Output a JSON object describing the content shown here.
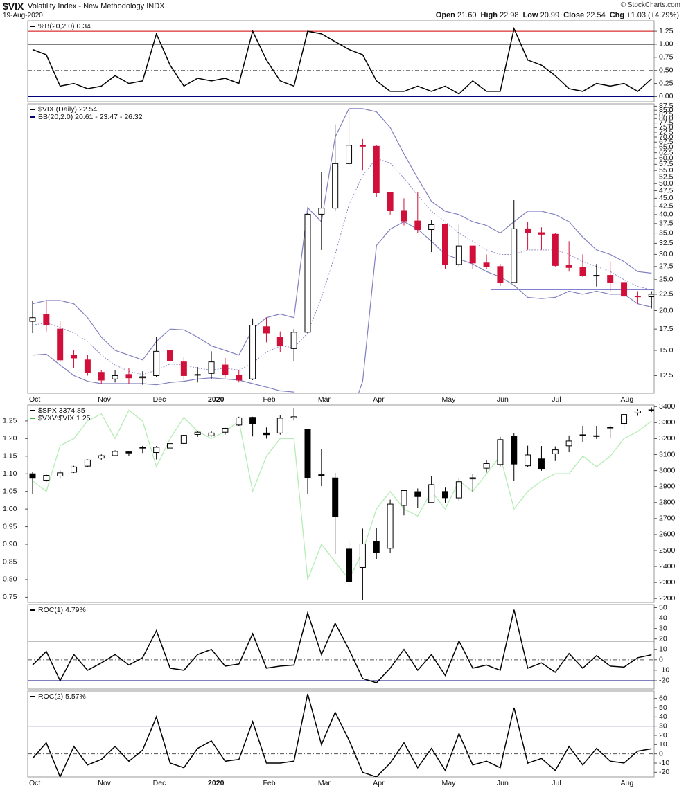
{
  "header": {
    "symbol": "$VIX",
    "name": "Volatility Index - New Methodology",
    "exchange": "INDX",
    "date": "19-Aug-2020",
    "quote": [
      {
        "label": "Open",
        "value": "21.60"
      },
      {
        "label": "High",
        "value": "22.98"
      },
      {
        "label": "Low",
        "value": "20.99"
      },
      {
        "label": "Close",
        "value": "22.54"
      },
      {
        "label": "Chg",
        "value": "+1.03 (+4.79%)"
      }
    ],
    "credit": "© StockCharts.com"
  },
  "chart_data": [
    {
      "type": "line",
      "ylim": [
        -0.1,
        1.45
      ],
      "yticks": [
        {
          "value": 0,
          "label": "0.00"
        },
        0.25,
        {
          "value": 0.5,
          "label": "0.50"
        },
        0.75,
        {
          "value": 1,
          "label": "1.00"
        },
        1.25
      ],
      "levels": [
        {
          "value": 1.25,
          "color": "#d00000",
          "dash": false
        },
        {
          "value": 1,
          "color": "#000000",
          "dash": false
        },
        {
          "value": 0.5,
          "color": "#555555",
          "dash": true
        },
        {
          "value": 0,
          "color": "#000080",
          "dash": false
        }
      ],
      "series": [
        {
          "name": "%B(20,2.0) 0.34",
          "color": "#000000",
          "values": [
            0.9,
            0.8,
            0.2,
            0.25,
            0.15,
            0.2,
            0.4,
            0.25,
            0.3,
            1.2,
            0.6,
            0.2,
            0.35,
            0.3,
            0.35,
            0.25,
            1.25,
            0.7,
            0.3,
            0.2,
            1.25,
            1.2,
            1.05,
            0.9,
            0.8,
            0.3,
            0.1,
            0.1,
            0.2,
            0.1,
            0.2,
            0.05,
            0.3,
            0.1,
            0.1,
            1.3,
            0.7,
            0.6,
            0.4,
            0.15,
            0.1,
            0.25,
            0.2,
            0.25,
            0.1,
            0.34
          ]
        }
      ]
    },
    {
      "type": "candlestick",
      "log_scale": true,
      "ylim": [
        11,
        89
      ],
      "yticks": [
        12.5,
        {
          "value": 15,
          "label": "15.0"
        },
        17.5,
        {
          "value": 20,
          "label": "20.0"
        },
        22.5,
        {
          "value": 25,
          "label": "25.0"
        },
        27.5,
        {
          "value": 30,
          "label": "30.0"
        },
        32.5,
        {
          "value": 35,
          "label": "35.0"
        },
        37.5,
        {
          "value": 40,
          "label": "40.0"
        },
        42.5,
        {
          "value": 45,
          "label": "45.0"
        },
        47.5,
        {
          "value": 50,
          "label": "50.0"
        },
        52.5,
        {
          "value": 55,
          "label": "55.0"
        },
        57.5,
        {
          "value": 60,
          "label": "60.0"
        },
        62.5,
        {
          "value": 65,
          "label": "65.0"
        },
        67.5,
        {
          "value": 70,
          "label": "70.0"
        },
        72.5,
        {
          "value": 75,
          "label": "75.0"
        },
        77.5,
        {
          "value": 80,
          "label": "80.0"
        },
        82.5,
        {
          "value": 85,
          "label": "85.0"
        },
        87.5
      ],
      "categories": [
        "Oct",
        null,
        null,
        null,
        null,
        "Nov",
        null,
        null,
        null,
        "Dec",
        null,
        null,
        null,
        "2020",
        null,
        null,
        null,
        "Feb",
        null,
        null,
        null,
        "Mar",
        null,
        null,
        null,
        "Apr",
        null,
        null,
        null,
        null,
        "May",
        null,
        null,
        null,
        "Jun",
        null,
        null,
        null,
        "Jul",
        null,
        null,
        null,
        null,
        "Aug",
        null,
        null
      ],
      "levels": [
        {
          "value": 23.3,
          "color": "#0000a0",
          "dash": false
        }
      ],
      "series": [
        {
          "name": "$VIX (Daily) 22.54",
          "up_color": "#000000",
          "down_color": "#d0103a",
          "hollow_up": true,
          "open": [
            18.5,
            19.5,
            17.5,
            14.5,
            14.0,
            12.8,
            12.2,
            12.6,
            12.3,
            12.5,
            15.0,
            13.8,
            12.6,
            12.7,
            13.5,
            12.5,
            12.2,
            17.8,
            16.5,
            15.2,
            17.1,
            40.1,
            41.9,
            57.8,
            66.0,
            65.5,
            46.8,
            41.2,
            38.2,
            35.9,
            37.2,
            27.9,
            31.9,
            28.2,
            27.5,
            24.5,
            36.1,
            35.1,
            34.7,
            27.7,
            27.3,
            25.7,
            25.8,
            24.5,
            22.2,
            22.1
          ],
          "high": [
            21.5,
            21.4,
            18.5,
            15.0,
            14.5,
            13.0,
            13.0,
            13.2,
            12.9,
            16.5,
            15.6,
            14.3,
            13.3,
            14.9,
            14.2,
            13.0,
            18.9,
            19.0,
            17.2,
            17.5,
            40.5,
            54.4,
            76.8,
            85.5,
            69.0,
            66.0,
            47.0,
            45.0,
            47.0,
            38.5,
            37.5,
            37.2,
            32.0,
            30.0,
            28.0,
            44.4,
            38.0,
            36.5,
            35.0,
            33.0,
            30.0,
            28.0,
            28.5,
            25.0,
            23.0,
            23.0
          ],
          "low": [
            17.0,
            17.2,
            13.8,
            13.2,
            12.5,
            11.8,
            11.9,
            11.8,
            11.7,
            12.4,
            13.3,
            12.1,
            11.9,
            12.2,
            12.3,
            11.9,
            12.1,
            15.9,
            14.8,
            13.9,
            17.0,
            31.0,
            41.0,
            57.0,
            55.0,
            45.5,
            40.0,
            37.0,
            35.0,
            30.5,
            27.0,
            27.5,
            27.0,
            27.0,
            23.9,
            24.4,
            31.0,
            31.0,
            27.5,
            26.5,
            25.5,
            23.8,
            23.0,
            22.0,
            21.0,
            20.3
          ],
          "close": [
            19.0,
            18.0,
            14.0,
            14.2,
            12.8,
            12.1,
            12.5,
            12.3,
            12.4,
            14.9,
            13.9,
            12.5,
            12.6,
            13.8,
            12.6,
            12.1,
            18.0,
            17.0,
            15.5,
            17.1,
            40.1,
            41.9,
            57.8,
            66.0,
            65.5,
            46.8,
            41.2,
            38.2,
            35.9,
            37.2,
            27.9,
            31.9,
            28.2,
            27.5,
            24.5,
            36.1,
            35.1,
            34.7,
            27.7,
            27.3,
            25.7,
            25.8,
            24.5,
            22.2,
            22.1,
            22.5
          ]
        }
      ],
      "bands": {
        "name": "BB(20,2.0) 20.61 - 23.47 - 26.32",
        "color": "#8080c0",
        "upper": [
          21,
          21.5,
          21.5,
          21,
          19,
          16.5,
          15,
          14.5,
          14,
          16,
          17.5,
          17.4,
          16.5,
          15.5,
          15,
          14.5,
          17.5,
          19,
          19.5,
          19,
          42,
          38,
          70,
          86,
          86,
          84,
          75,
          62,
          52,
          44,
          41,
          40,
          38,
          37,
          35,
          38,
          41,
          41,
          40,
          38,
          34,
          31,
          30,
          28.5,
          26.5,
          26.2
        ],
        "middle": [
          18,
          18.3,
          17.7,
          17,
          16,
          14.5,
          13.5,
          12.9,
          12.6,
          13,
          13.6,
          13.5,
          13.2,
          13,
          13.2,
          13,
          13.7,
          14.8,
          15.5,
          15.3,
          17,
          22,
          30,
          43,
          53,
          60,
          58,
          52,
          46,
          41,
          38,
          35,
          33,
          31,
          30,
          30,
          31,
          31,
          31,
          30,
          28.5,
          27.5,
          26.5,
          25,
          23.8,
          23.2
        ],
        "lower": [
          14.5,
          14.6,
          13.5,
          12.5,
          12,
          11.8,
          11.8,
          11.8,
          11.8,
          11.7,
          11.9,
          12,
          12.2,
          12.3,
          12.2,
          12.1,
          11.8,
          11.5,
          11.2,
          11.1,
          9,
          9,
          9,
          9,
          12,
          32,
          36,
          38,
          36,
          33,
          30,
          29,
          28,
          26.5,
          25.5,
          24,
          22,
          21.8,
          22,
          23,
          22.5,
          23,
          22.5,
          22.5,
          21,
          20.5
        ]
      }
    },
    {
      "type": "candlestick",
      "ylim": [
        2175,
        3410
      ],
      "yticks": [
        2200,
        2300,
        2400,
        2500,
        2600,
        2700,
        2800,
        2900,
        3000,
        3100,
        3200,
        3300,
        3400
      ],
      "y2lim": [
        0.735,
        1.295
      ],
      "y2ticks": [
        0.75,
        {
          "value": 0.8,
          "label": "0.80"
        },
        0.85,
        {
          "value": 0.9,
          "label": "0.90"
        },
        0.95,
        {
          "value": 1,
          "label": "1.00"
        },
        1.05,
        {
          "value": 1.1,
          "label": "1.10"
        },
        1.15,
        {
          "value": 1.2,
          "label": "1.20"
        },
        1.25
      ],
      "series": [
        {
          "name": "$SPX 3374.85",
          "up_color": "#000000",
          "down_color": "#000000",
          "hollow_up": true,
          "open": [
            2980,
            2940,
            2966,
            2990,
            3028,
            3078,
            3094,
            3117,
            3145,
            3113,
            3141,
            3170,
            3226,
            3218,
            3240,
            3285,
            3333,
            3235,
            3235,
            3330,
            3257,
            2974,
            2954,
            2509,
            2394,
            2558,
            2514,
            2782,
            2868,
            2800,
            2869,
            2829,
            2948,
            3015,
            3038,
            3213,
            3030,
            3073,
            3105,
            3155,
            3224,
            3218,
            3271,
            3295,
            3361,
            3380
          ],
          "high": [
            2993,
            2975,
            3000,
            3030,
            3070,
            3102,
            3127,
            3120,
            3155,
            3154,
            3183,
            3225,
            3248,
            3246,
            3268,
            3337,
            3337,
            3270,
            3348,
            3393,
            3259,
            3137,
            2985,
            2555,
            2637,
            2641,
            2818,
            2879,
            2888,
            2965,
            2893,
            2955,
            2980,
            3068,
            3212,
            3233,
            3156,
            3154,
            3152,
            3220,
            3280,
            3280,
            3281,
            3354,
            3387,
            3395
          ],
          "low": [
            2855,
            2930,
            2950,
            2985,
            3022,
            3064,
            3092,
            3091,
            3110,
            3070,
            3135,
            3166,
            3211,
            3213,
            3225,
            3280,
            3214,
            3200,
            3225,
            3313,
            2855,
            2903,
            2478,
            2280,
            2191,
            2447,
            2484,
            2720,
            2766,
            2798,
            2798,
            2811,
            2868,
            2988,
            3027,
            2935,
            3024,
            2999,
            3060,
            3115,
            3180,
            3198,
            3204,
            3262,
            3343,
            3366
          ],
          "close": [
            2952,
            2970,
            2986,
            3023,
            3066,
            3093,
            3120,
            3110,
            3141,
            3146,
            3169,
            3221,
            3240,
            3235,
            3265,
            3330,
            3295,
            3225,
            3328,
            3337,
            2954,
            2972,
            2711,
            2305,
            2541,
            2489,
            2790,
            2875,
            2837,
            2912,
            2830,
            2930,
            2955,
            3044,
            3194,
            3041,
            3098,
            3009,
            3130,
            3185,
            3224,
            3216,
            3271,
            3351,
            3373,
            3375
          ]
        },
        {
          "name": "$VXV:$VIX 1.25",
          "color": "#b4ecb4",
          "label_color": "#33bb33",
          "axis": "y2",
          "values": [
            1.08,
            1.05,
            1.18,
            1.2,
            1.25,
            1.27,
            1.2,
            1.28,
            1.25,
            1.12,
            1.2,
            1.26,
            1.22,
            1.2,
            1.22,
            1.25,
            1.05,
            1.15,
            1.2,
            1.2,
            0.8,
            0.9,
            0.85,
            0.8,
            0.88,
            1.0,
            1.05,
            1.0,
            0.98,
            1.05,
            1.0,
            1.08,
            1.05,
            1.1,
            1.15,
            1.0,
            1.05,
            1.08,
            1.1,
            1.1,
            1.15,
            1.12,
            1.15,
            1.2,
            1.22,
            1.25
          ]
        }
      ]
    },
    {
      "type": "line",
      "ylim": [
        -28,
        53
      ],
      "yticks": [
        -20,
        -10,
        0,
        10,
        20,
        30,
        40,
        50
      ],
      "levels": [
        {
          "value": 18,
          "color": "#000000",
          "dash": false
        },
        {
          "value": 0,
          "color": "#555555",
          "dash": true
        },
        {
          "value": -20,
          "color": "#000080",
          "dash": false
        }
      ],
      "series": [
        {
          "name": "ROC(1) 4.79%",
          "color": "#000000",
          "values": [
            -5,
            8,
            -20,
            5,
            -10,
            -3,
            5,
            -5,
            2,
            28,
            -8,
            -10,
            5,
            10,
            -6,
            -4,
            25,
            -8,
            -6,
            -5,
            45,
            5,
            35,
            10,
            -18,
            -22,
            -8,
            10,
            -10,
            5,
            -15,
            18,
            -8,
            -5,
            -10,
            48,
            -8,
            -3,
            -12,
            6,
            -8,
            4,
            -6,
            -7,
            2,
            4.79
          ]
        }
      ]
    },
    {
      "type": "line",
      "ylim": [
        -25,
        68
      ],
      "yticks": [
        -20,
        -10,
        0,
        10,
        20,
        30,
        40,
        50,
        60
      ],
      "categories": [
        "Oct",
        null,
        null,
        null,
        null,
        "Nov",
        null,
        null,
        null,
        "Dec",
        null,
        null,
        null,
        "2020",
        null,
        null,
        null,
        "Feb",
        null,
        null,
        null,
        "Mar",
        null,
        null,
        null,
        "Apr",
        null,
        null,
        null,
        null,
        "May",
        null,
        null,
        null,
        "Jun",
        null,
        null,
        null,
        "Jul",
        null,
        null,
        null,
        null,
        "Aug",
        null,
        null
      ],
      "levels": [
        {
          "value": 30,
          "color": "#000080",
          "dash": false
        },
        {
          "value": 0,
          "color": "#555555",
          "dash": true
        }
      ],
      "series": [
        {
          "name": "ROC(2) 5.57%",
          "color": "#000000",
          "values": [
            -5,
            12,
            -25,
            8,
            -12,
            -6,
            8,
            -8,
            4,
            40,
            -10,
            -15,
            6,
            14,
            -8,
            -6,
            35,
            -10,
            -10,
            -8,
            65,
            10,
            45,
            15,
            -20,
            -25,
            -10,
            12,
            -15,
            6,
            -18,
            22,
            -12,
            -8,
            -15,
            50,
            -10,
            -5,
            -18,
            8,
            -12,
            6,
            -8,
            -10,
            3,
            5.57
          ]
        }
      ]
    }
  ]
}
